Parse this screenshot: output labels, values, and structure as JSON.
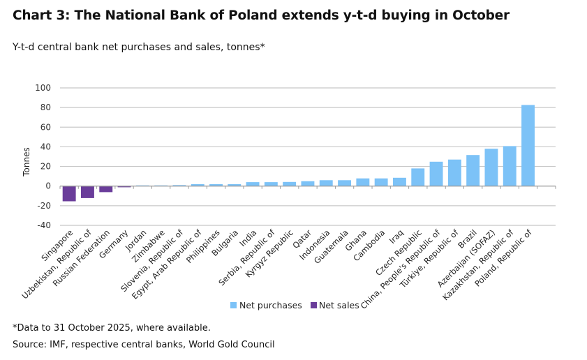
{
  "chart_data": {
    "type": "bar",
    "title": "Chart 3: The National Bank of Poland extends y-t-d buying in October",
    "subtitle": "Y-t-d central bank net purchases and sales, tonnes*",
    "xlabel": "",
    "ylabel": "Tonnes",
    "ylim": [
      -40,
      100
    ],
    "yticks": [
      100,
      80,
      60,
      40,
      20,
      0,
      -20,
      -40
    ],
    "grid": true,
    "legend_position": "bottom",
    "categories": [
      "Singapore",
      "Uzbekistan, Republic of",
      "Russian Federation",
      "Germany",
      "Jordan",
      "Zimbabwe",
      "Slovenia, Republic of",
      "Egypt, Arab Republic of",
      "Philippines",
      "Bulgaria",
      "India",
      "Serbia, Republic of",
      "Kyrgyz Republic",
      "Qatar",
      "Indonesia",
      "Guatemala",
      "Ghana",
      "Cambodia",
      "Iraq",
      "Czech Republic",
      "China, People's Republic of",
      "Türkiye, Republic of",
      "Brazil",
      "Azerbaijan (SOFAZ)",
      "Kazakhstan, Republic of",
      "Poland, Republic of"
    ],
    "values": [
      -15.5,
      -12.2,
      -6.2,
      -1.2,
      0.7,
      0.7,
      1.0,
      2.0,
      2.0,
      2.0,
      4.0,
      4.0,
      4.2,
      5.0,
      6.0,
      6.0,
      7.8,
      7.8,
      8.5,
      18.0,
      24.8,
      27.0,
      31.6,
      38.0,
      40.7,
      82.6
    ],
    "series": [
      {
        "name": "Net purchases",
        "color": "#7cc2f7"
      },
      {
        "name": "Net sales",
        "color": "#6a3d9a"
      }
    ]
  },
  "footnote": "*Data to 31 October 2025, where available.",
  "source": "Source: IMF, respective central banks, World Gold Council"
}
